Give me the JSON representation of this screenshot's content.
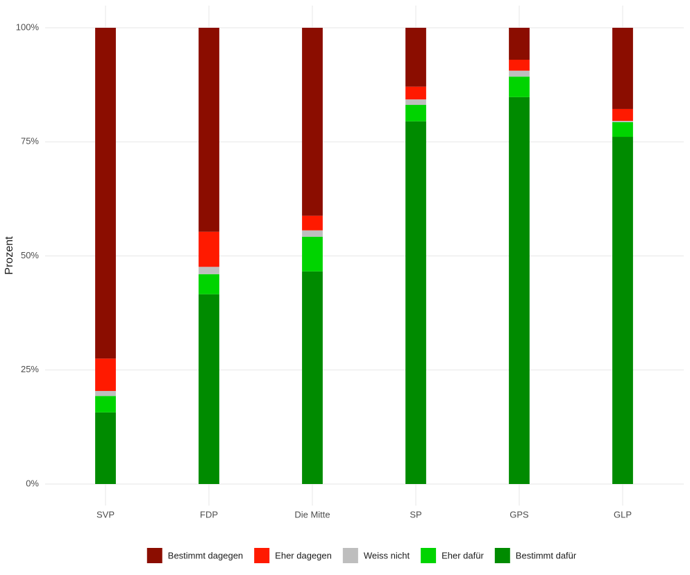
{
  "chart_data": {
    "type": "stacked_bar",
    "y_label": "Prozent",
    "categories": [
      "SVP",
      "FDP",
      "Die Mitte",
      "SP",
      "GPS",
      "GLP"
    ],
    "series": [
      {
        "name": "Bestimmt dagegen",
        "color": "#8b0d00",
        "values": [
          72.5,
          44.7,
          41.2,
          12.9,
          7.0,
          17.8
        ]
      },
      {
        "name": "Eher dagegen",
        "color": "#ff1a00",
        "values": [
          7.1,
          7.7,
          3.2,
          2.8,
          2.4,
          2.6
        ]
      },
      {
        "name": "Weiss nicht",
        "color": "#bebebe",
        "values": [
          1.1,
          1.6,
          1.4,
          1.2,
          1.3,
          0.3
        ]
      },
      {
        "name": "Eher dafür",
        "color": "#00d400",
        "values": [
          3.6,
          4.4,
          7.6,
          3.6,
          4.5,
          3.2
        ]
      },
      {
        "name": "Bestimmt dafür",
        "color": "#008b00",
        "values": [
          15.7,
          41.6,
          46.6,
          79.5,
          84.8,
          76.1
        ]
      }
    ],
    "ylim": [
      0,
      100
    ],
    "yticks": [
      {
        "value": 0,
        "label": "0%"
      },
      {
        "value": 25,
        "label": "25%"
      },
      {
        "value": 50,
        "label": "50%"
      },
      {
        "value": 75,
        "label": "75%"
      },
      {
        "value": 100,
        "label": "100%"
      }
    ],
    "grid": true,
    "legend": "bottom"
  }
}
